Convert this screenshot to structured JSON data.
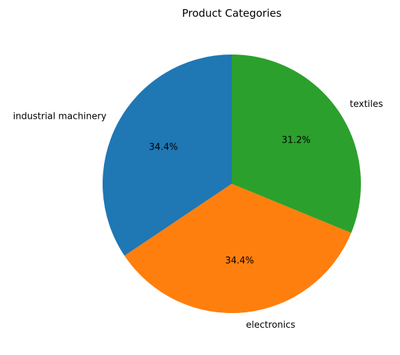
{
  "chart_data": {
    "type": "pie",
    "title": "Product Categories",
    "labels": [
      "industrial machinery",
      "electronics",
      "textiles"
    ],
    "values": [
      34.4,
      34.4,
      31.2
    ],
    "value_labels": [
      "34.4%",
      "34.4%",
      "31.2%"
    ],
    "colors": [
      "#1f77b4",
      "#ff7f0e",
      "#2ca02c"
    ],
    "start_angle_deg": 90,
    "direction": "counterclockwise"
  }
}
